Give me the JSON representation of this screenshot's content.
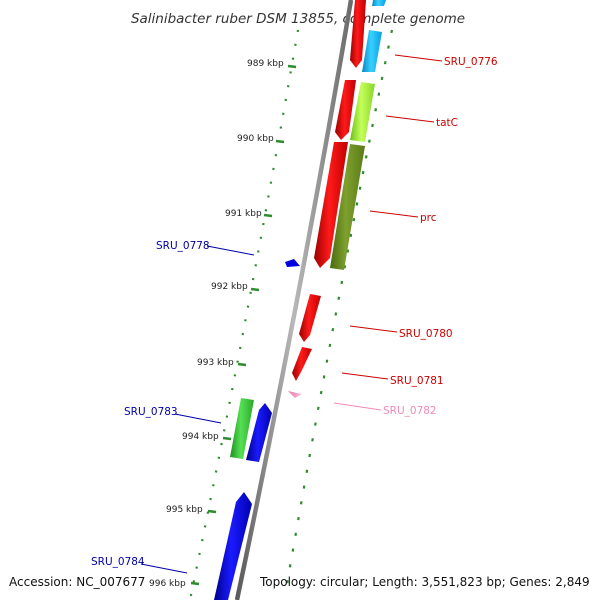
{
  "title": "Salinibacter ruber DSM 13855, complete genome",
  "footer": {
    "accession": "Accession: NC_007677",
    "summary": "Topology: circular; Length: 3,551,823 bp; Genes: 2,849"
  },
  "ruler": {
    "tick_color": "#2e8b2e",
    "ticks": [
      "989 kbp",
      "990 kbp",
      "991 kbp",
      "992 kbp",
      "993 kbp",
      "994 kbp",
      "995 kbp",
      "996 kbp"
    ]
  },
  "colors": {
    "backbone": "#8a8a8a",
    "forward_label": "#cc0000",
    "reverse_label": "#0000aa",
    "pink_label": "#f08ab8"
  },
  "gene_labels": [
    "SRU_0776",
    "tatC",
    "prc",
    "SRU_0778",
    "SRU_0780",
    "SRU_0781",
    "SRU_0782",
    "SRU_0783",
    "SRU_0784"
  ],
  "legend_colors": {
    "cds": "#ff0000",
    "cds_reverse": "#0000ff",
    "cyan": "#1ec8ff",
    "lime": "#a4f23a",
    "olive": "#6b8e23",
    "green": "#36c236",
    "pink": "#f5a5cc"
  }
}
